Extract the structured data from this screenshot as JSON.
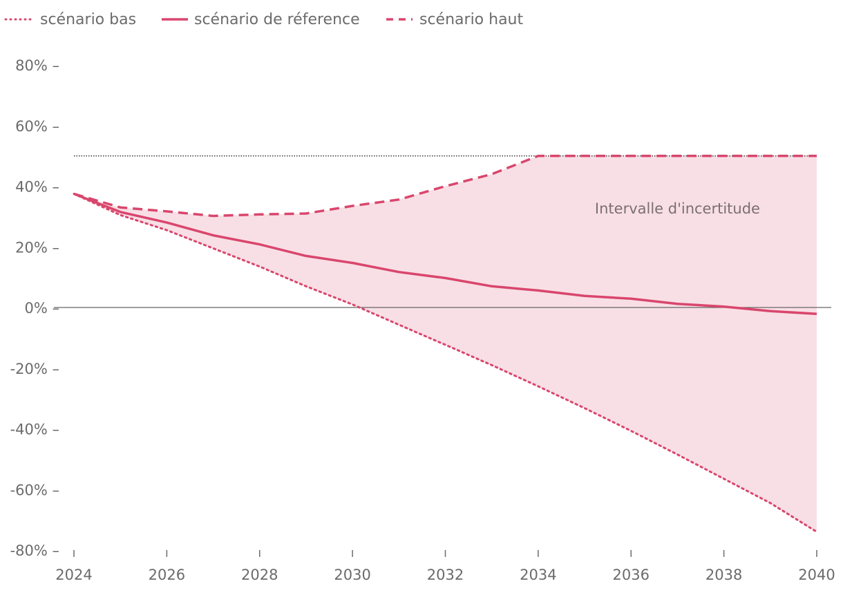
{
  "chart_data": {
    "type": "line",
    "title": "",
    "xlabel": "",
    "ylabel": "",
    "x": [
      2024,
      2025,
      2026,
      2027,
      2028,
      2029,
      2030,
      2031,
      2032,
      2033,
      2034,
      2035,
      2036,
      2037,
      2038,
      2039,
      2040
    ],
    "x_ticks": [
      2024,
      2026,
      2028,
      2030,
      2032,
      2034,
      2036,
      2038,
      2040
    ],
    "x_tick_labels": [
      "2024",
      "2026",
      "2028",
      "2030",
      "2032",
      "2034",
      "2036",
      "2038",
      "2040"
    ],
    "y_ticks": [
      80,
      60,
      40,
      20,
      0,
      -20,
      -40,
      -60,
      -80
    ],
    "y_tick_labels": [
      "80% –",
      "60% –",
      "40% –",
      "20% –",
      "0% –",
      "-20% –",
      "-40% –",
      "-60% –",
      "-80% –"
    ],
    "xlim": [
      2024,
      2040
    ],
    "ylim": [
      -80,
      80
    ],
    "series": [
      {
        "name": "scénario bas",
        "style": "dotted",
        "values": [
          37.5,
          30.5,
          25.5,
          19.5,
          13.5,
          7,
          1,
          -5.7,
          -12.3,
          -19,
          -26,
          -33.2,
          -40.7,
          -48.5,
          -56.5,
          -64.5,
          -74
        ]
      },
      {
        "name": "scénario de réference",
        "style": "solid",
        "values": [
          37.5,
          31.5,
          28,
          23.8,
          20.8,
          17,
          14.7,
          11.7,
          9.7,
          7,
          5.6,
          3.8,
          2.9,
          1.2,
          0.3,
          -1.2,
          -2.1
        ]
      },
      {
        "name": "scénario haut",
        "style": "dashed",
        "values": [
          37.5,
          33,
          31.7,
          30.2,
          30.7,
          31,
          33.5,
          35.6,
          40,
          44,
          50,
          50,
          50,
          50,
          50,
          50,
          50
        ]
      }
    ],
    "reference_lines": [
      {
        "y": 50,
        "style": "dotted",
        "color": "#333333"
      },
      {
        "y": 0,
        "style": "solid",
        "color": "#666666"
      }
    ],
    "band": {
      "lower_series": "scénario bas",
      "upper_series": "scénario haut",
      "color": "#f8dfe5"
    },
    "annotations": [
      {
        "text": "Intervalle d'incertitude",
        "x": 2037,
        "y": 31
      }
    ],
    "legend_position": "top-left",
    "colors": {
      "line": "#d9466d",
      "band": "#f8dfe5",
      "text": "#6b6b6b",
      "zero": "#666666",
      "cap": "#333333"
    }
  }
}
